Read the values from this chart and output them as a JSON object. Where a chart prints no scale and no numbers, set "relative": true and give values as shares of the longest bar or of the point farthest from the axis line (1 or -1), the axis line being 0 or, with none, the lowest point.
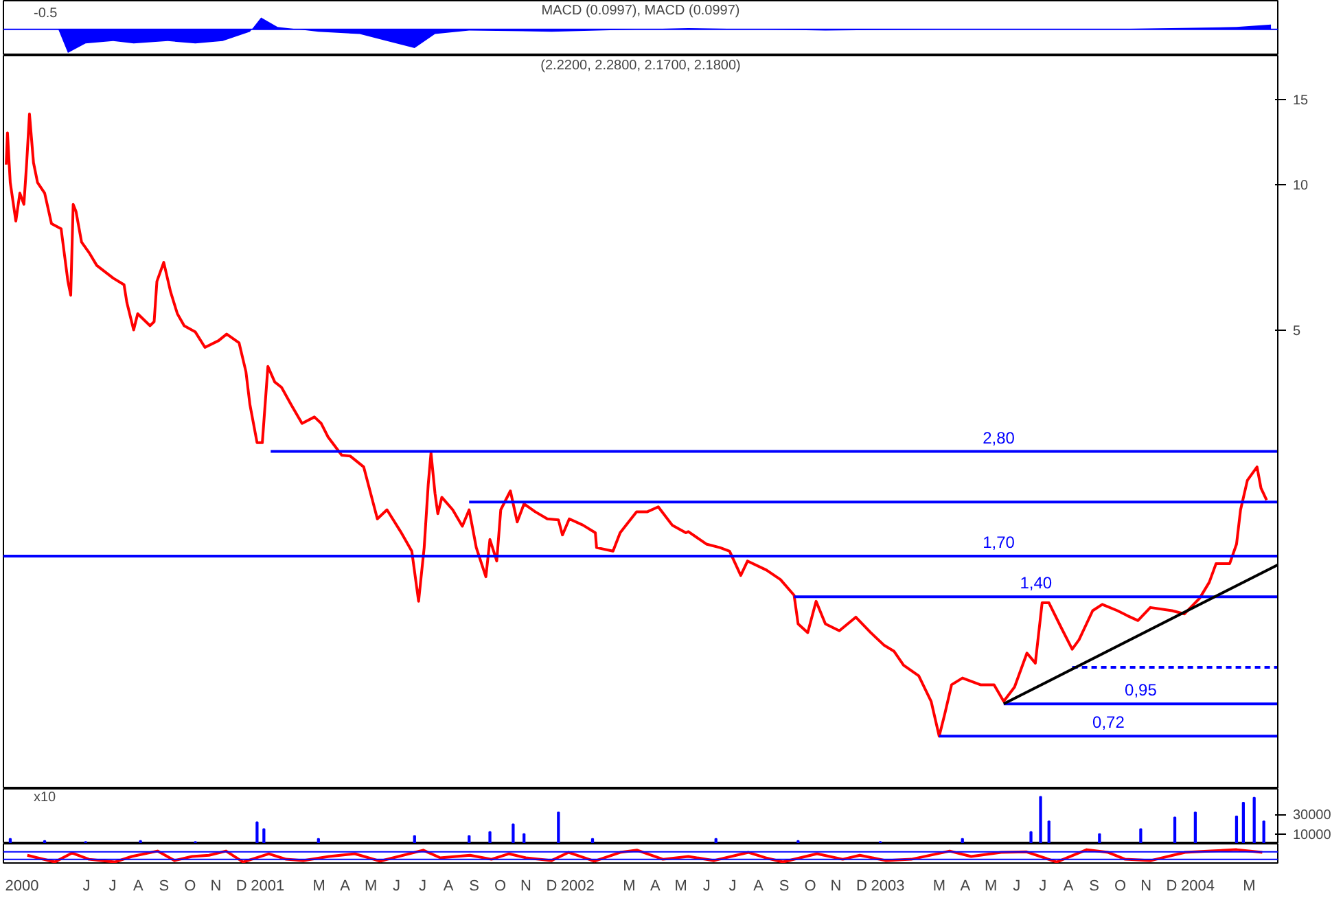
{
  "chart_data": [
    {
      "type": "area",
      "title": "MACD (0.0997), MACD (0.0997)",
      "relative": true,
      "tick_labels": false,
      "xlim": [
        2000.19,
        2004.3
      ],
      "annotations": [
        "-0.5"
      ],
      "ref_lines": [
        {
          "axis": "y",
          "value": 0,
          "color": "#0000ff"
        }
      ],
      "series": [
        {
          "color": "#0000ff",
          "x": [
            2000.19,
            2000.367,
            2000.398,
            2000.455,
            2000.544,
            2000.61,
            2000.72,
            2000.809,
            2000.897,
            2000.985,
            2001.021,
            2001.074,
            2001.206,
            2001.339,
            2001.427,
            2001.516,
            2001.582,
            2001.692,
            2001.958,
            2002.399,
            2002.841,
            2003.283,
            2003.725,
            2004.167,
            2004.278
          ],
          "values": [
            0,
            0,
            -1,
            -0.6,
            -0.5,
            -0.6,
            -0.5,
            -0.6,
            -0.5,
            -0.1,
            0.5,
            0.1,
            -0.1,
            -0.2,
            -0.5,
            -0.8,
            -0.2,
            -0.05,
            -0.1,
            0.05,
            -0.05,
            0,
            0,
            0.1,
            0.2
          ]
        }
      ]
    },
    {
      "type": "line",
      "title": "(2.2200, 2.2800, 2.1700, 2.1800)",
      "log": true,
      "tick_labels": "y",
      "xlim": [
        2000.19,
        2004.3
      ],
      "ylim": [
        0.56,
        18.5
      ],
      "yticks": [
        5,
        10,
        15
      ],
      "grid": false,
      "series": [
        {
          "color": "#ff0000",
          "x": [
            2000.199,
            2000.203,
            2000.212,
            2000.23,
            2000.243,
            2000.256,
            2000.265,
            2000.274,
            2000.287,
            2000.3,
            2000.323,
            2000.345,
            2000.376,
            2000.398,
            2000.407,
            2000.415,
            2000.424,
            2000.442,
            2000.468,
            2000.491,
            2000.544,
            2000.579,
            2000.588,
            2000.61,
            2000.623,
            2000.663,
            2000.676,
            2000.685,
            2000.707,
            2000.729,
            2000.751,
            2000.773,
            2000.809,
            2000.84,
            2000.884,
            2000.91,
            2000.95,
            2000.972,
            2000.985,
            2001.008,
            2001.025,
            2001.043,
            2001.065,
            2001.087,
            2001.118,
            2001.153,
            2001.193,
            2001.215,
            2001.237,
            2001.281,
            2001.308,
            2001.352,
            2001.396,
            2001.427,
            2001.471,
            2001.507,
            2001.529,
            2001.547,
            2001.56,
            2001.569,
            2001.582,
            2001.591,
            2001.604,
            2001.639,
            2001.67,
            2001.692,
            2001.715,
            2001.746,
            2001.759,
            2001.781,
            2001.794,
            2001.825,
            2001.847,
            2001.869,
            2001.905,
            2001.944,
            2001.98,
            2001.993,
            2002.015,
            2002.059,
            2002.099,
            2002.103,
            2002.156,
            2002.179,
            2002.232,
            2002.267,
            2002.302,
            2002.347,
            2002.391,
            2002.399,
            2002.457,
            2002.501,
            2002.532,
            2002.568,
            2002.59,
            2002.651,
            2002.696,
            2002.74,
            2002.753,
            2002.784,
            2002.811,
            2002.841,
            2002.886,
            2002.939,
            2002.987,
            2003.031,
            2003.062,
            2003.093,
            2003.142,
            2003.182,
            2003.208,
            2003.226,
            2003.248,
            2003.283,
            2003.341,
            2003.385,
            2003.416,
            2003.451,
            2003.491,
            2003.518,
            2003.54,
            2003.562,
            2003.601,
            2003.637,
            2003.659,
            2003.703,
            2003.734,
            2003.783,
            2003.814,
            2003.849,
            2003.889,
            2003.959,
            2003.999,
            2004.048,
            2004.079,
            2004.101,
            2004.145,
            2004.167,
            2004.18,
            2004.202,
            2004.233,
            2004.246,
            2004.264
          ],
          "values": [
            11.0,
            12.8,
            10.1,
            8.4,
            9.6,
            9.1,
            11.1,
            14.0,
            11.1,
            10.1,
            9.6,
            8.3,
            8.1,
            6.3,
            5.9,
            9.1,
            8.8,
            7.6,
            7.2,
            6.8,
            6.4,
            6.2,
            5.7,
            5.0,
            5.4,
            5.1,
            5.2,
            6.3,
            6.9,
            6.0,
            5.4,
            5.1,
            4.95,
            4.6,
            4.75,
            4.9,
            4.7,
            4.1,
            3.5,
            2.92,
            2.92,
            4.2,
            3.9,
            3.8,
            3.5,
            3.2,
            3.3,
            3.2,
            3.0,
            2.75,
            2.74,
            2.6,
            2.03,
            2.12,
            1.91,
            1.74,
            1.37,
            1.77,
            2.39,
            2.78,
            2.29,
            2.08,
            2.25,
            2.12,
            1.96,
            2.12,
            1.77,
            1.54,
            1.84,
            1.66,
            2.12,
            2.32,
            2.0,
            2.18,
            2.1,
            2.03,
            2.02,
            1.88,
            2.03,
            1.97,
            1.9,
            1.77,
            1.74,
            1.9,
            2.1,
            2.1,
            2.15,
            1.97,
            1.9,
            1.91,
            1.8,
            1.77,
            1.74,
            1.55,
            1.66,
            1.59,
            1.52,
            1.41,
            1.23,
            1.18,
            1.37,
            1.23,
            1.19,
            1.27,
            1.18,
            1.11,
            1.08,
            1.01,
            0.96,
            0.85,
            0.72,
            0.8,
            0.92,
            0.95,
            0.92,
            0.92,
            0.85,
            0.91,
            1.07,
            1.02,
            1.36,
            1.36,
            1.21,
            1.09,
            1.14,
            1.31,
            1.35,
            1.31,
            1.28,
            1.25,
            1.33,
            1.31,
            1.29,
            1.39,
            1.5,
            1.64,
            1.64,
            1.8,
            2.12,
            2.44,
            2.6,
            2.35,
            2.22
          ]
        },
        {
          "name": "2,80",
          "color": "#0000ff",
          "x": [
            2001.052,
            2004.3
          ],
          "values": [
            2.8,
            2.8
          ]
        },
        {
          "color": "#0000ff",
          "x": [
            2001.692,
            2004.3
          ],
          "values": [
            2.2,
            2.2
          ]
        },
        {
          "name": "1,70",
          "color": "#0000ff",
          "x": [
            2000.19,
            2004.3
          ],
          "values": [
            1.7,
            1.7
          ]
        },
        {
          "name": "1,40",
          "color": "#0000ff",
          "x": [
            2002.74,
            2004.3
          ],
          "values": [
            1.4,
            1.4
          ]
        },
        {
          "color": "#0000ff",
          "x": [
            2003.637,
            2004.3
          ],
          "values": [
            1.0,
            1.0
          ],
          "line_style": "dashed"
        },
        {
          "name": "0,95",
          "color": "#0000ff",
          "x": [
            2003.416,
            2004.3
          ],
          "values": [
            0.84,
            0.84
          ]
        },
        {
          "name": "0,72",
          "color": "#0000ff",
          "x": [
            2003.208,
            2004.3
          ],
          "values": [
            0.72,
            0.72
          ]
        },
        {
          "color": "#000000",
          "x": [
            2003.416,
            2004.3
          ],
          "values": [
            0.84,
            1.63
          ]
        }
      ]
    },
    {
      "type": "bar",
      "tick_labels": "y",
      "xlim": [
        2000.19,
        2004.3
      ],
      "ylim": [
        0,
        56000
      ],
      "yticks": [
        10000,
        30000
      ],
      "annotations": [
        "x10"
      ],
      "series": [
        {
          "color": "#0000ff",
          "x": [
            2000.212,
            2000.323,
            2000.455,
            2000.632,
            2000.809,
            2001.008,
            2001.03,
            2001.206,
            2001.516,
            2001.692,
            2001.759,
            2001.834,
            2001.869,
            2001.98,
            2002.09,
            2002.488,
            2002.753,
            2003.018,
            2003.283,
            2003.504,
            2003.535,
            2003.562,
            2003.725,
            2003.858,
            2003.968,
            2004.034,
            2004.167,
            2004.189,
            2004.224,
            2004.255
          ],
          "values": [
            5000,
            3000,
            2000,
            3000,
            2000,
            22000,
            15000,
            5000,
            8000,
            8000,
            12000,
            20000,
            10000,
            32000,
            5000,
            5000,
            3000,
            2000,
            5000,
            12000,
            48000,
            23000,
            10000,
            15000,
            27000,
            32000,
            28000,
            42000,
            47000,
            23000
          ]
        }
      ]
    },
    {
      "type": "line",
      "relative": true,
      "xlim": [
        2000.19,
        2004.3
      ],
      "ref_lines": [
        {
          "axis": "y",
          "value": 0.83,
          "color": "#0000ff"
        },
        {
          "axis": "y",
          "value": 0.21,
          "color": "#0000ff"
        }
      ],
      "xticks": [
        {
          "value": 2000.25,
          "label": "2000"
        },
        {
          "value": 2000.458,
          "label": "J"
        },
        {
          "value": 2000.542,
          "label": "J"
        },
        {
          "value": 2000.625,
          "label": "A"
        },
        {
          "value": 2000.708,
          "label": "S"
        },
        {
          "value": 2000.792,
          "label": "O"
        },
        {
          "value": 2000.875,
          "label": "N"
        },
        {
          "value": 2000.958,
          "label": "D"
        },
        {
          "value": 2001.042,
          "label": "2001"
        },
        {
          "value": 2001.208,
          "label": "M"
        },
        {
          "value": 2001.292,
          "label": "A"
        },
        {
          "value": 2001.375,
          "label": "M"
        },
        {
          "value": 2001.458,
          "label": "J"
        },
        {
          "value": 2001.542,
          "label": "J"
        },
        {
          "value": 2001.625,
          "label": "A"
        },
        {
          "value": 2001.708,
          "label": "S"
        },
        {
          "value": 2001.792,
          "label": "O"
        },
        {
          "value": 2001.875,
          "label": "N"
        },
        {
          "value": 2001.958,
          "label": "D"
        },
        {
          "value": 2002.042,
          "label": "2002"
        },
        {
          "value": 2002.208,
          "label": "M"
        },
        {
          "value": 2002.292,
          "label": "A"
        },
        {
          "value": 2002.375,
          "label": "M"
        },
        {
          "value": 2002.458,
          "label": "J"
        },
        {
          "value": 2002.542,
          "label": "J"
        },
        {
          "value": 2002.625,
          "label": "A"
        },
        {
          "value": 2002.708,
          "label": "S"
        },
        {
          "value": 2002.792,
          "label": "O"
        },
        {
          "value": 2002.875,
          "label": "N"
        },
        {
          "value": 2002.958,
          "label": "D"
        },
        {
          "value": 2003.042,
          "label": "2003"
        },
        {
          "value": 2003.208,
          "label": "M"
        },
        {
          "value": 2003.292,
          "label": "A"
        },
        {
          "value": 2003.375,
          "label": "M"
        },
        {
          "value": 2003.458,
          "label": "J"
        },
        {
          "value": 2003.542,
          "label": "J"
        },
        {
          "value": 2003.625,
          "label": "A"
        },
        {
          "value": 2003.708,
          "label": "S"
        },
        {
          "value": 2003.792,
          "label": "O"
        },
        {
          "value": 2003.875,
          "label": "N"
        },
        {
          "value": 2003.958,
          "label": "D"
        },
        {
          "value": 2004.042,
          "label": "2004"
        },
        {
          "value": 2004.208,
          "label": "M"
        }
      ],
      "series": [
        {
          "color": "#ff0000",
          "x": [
            2000.267,
            2000.3,
            2000.356,
            2000.411,
            2000.466,
            2000.549,
            2000.604,
            2000.687,
            2000.742,
            2000.798,
            2000.853,
            2000.908,
            2000.963,
            2001.046,
            2001.102,
            2001.157,
            2001.24,
            2001.323,
            2001.405,
            2001.544,
            2001.599,
            2001.695,
            2001.764,
            2001.82,
            2001.875,
            2001.958,
            2002.013,
            2002.096,
            2002.179,
            2002.234,
            2002.317,
            2002.399,
            2002.482,
            2002.593,
            2002.648,
            2002.704,
            2002.814,
            2002.897,
            2002.952,
            2003.035,
            2003.118,
            2003.242,
            2003.311,
            2003.408,
            2003.49,
            2003.587,
            2003.684,
            2003.753,
            2003.808,
            2003.891,
            2004.001,
            2004.084,
            2004.167,
            2004.25
          ],
          "values": [
            0.55,
            0.34,
            0,
            0.73,
            0.22,
            0,
            0.45,
            0.89,
            0.12,
            0.45,
            0.55,
            0.89,
            0,
            0.67,
            0.22,
            0.12,
            0.45,
            0.67,
            0.07,
            0.96,
            0.34,
            0.55,
            0.22,
            0.67,
            0.34,
            0.12,
            0.78,
            0.07,
            0.78,
            0.96,
            0.22,
            0.45,
            0.12,
            0.78,
            0.34,
            0,
            0.67,
            0.22,
            0.55,
            0.12,
            0.22,
            0.89,
            0.45,
            0.78,
            0.82,
            0,
            1,
            0.78,
            0.22,
            0.12,
            0.78,
            0.89,
            1,
            0.78
          ]
        }
      ]
    }
  ]
}
